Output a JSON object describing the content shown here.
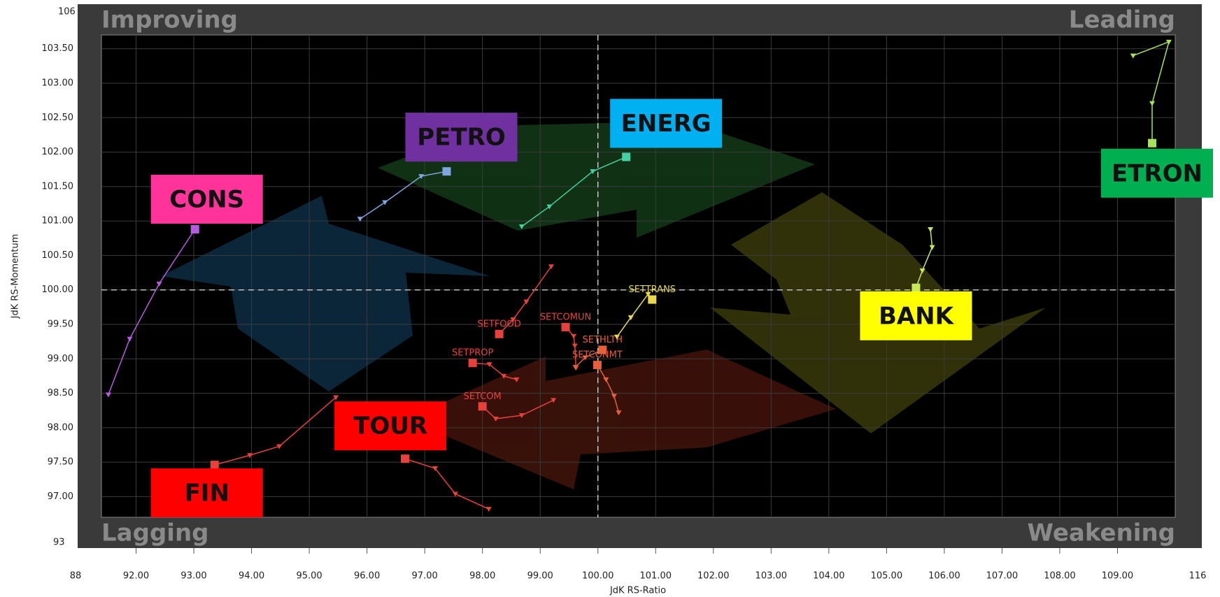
{
  "chart_data": {
    "type": "rrg",
    "x_label": "JdK RS-Ratio",
    "y_label": "JdK RS-Momentum",
    "quadrants": [
      "Improving",
      "Leading",
      "Lagging",
      "Weakening"
    ],
    "outer_labels": [
      "106",
      "93",
      "88",
      "116"
    ],
    "xlim": [
      91.4,
      110
    ],
    "ylim": [
      96.7,
      103.7
    ],
    "xticks": [
      {
        "value": 92,
        "label": "92.00"
      },
      {
        "value": 93,
        "label": "93.00"
      },
      {
        "value": 94,
        "label": "94.00"
      },
      {
        "value": 95,
        "label": "95.00"
      },
      {
        "value": 96,
        "label": "96.00"
      },
      {
        "value": 97,
        "label": "97.00"
      },
      {
        "value": 98,
        "label": "98.00"
      },
      {
        "value": 99,
        "label": "99.00"
      },
      {
        "value": 100,
        "label": "100.00"
      },
      {
        "value": 101,
        "label": "101.00"
      },
      {
        "value": 102,
        "label": "102.00"
      },
      {
        "value": 103,
        "label": "103.00"
      },
      {
        "value": 104,
        "label": "104.00"
      },
      {
        "value": 105,
        "label": "105.00"
      },
      {
        "value": 106,
        "label": "106.00"
      },
      {
        "value": 107,
        "label": "107.00"
      },
      {
        "value": 108,
        "label": "108.00"
      },
      {
        "value": 109,
        "label": "109.00"
      }
    ],
    "yticks": [
      {
        "value": 97,
        "label": "97.00"
      },
      {
        "value": 97.5,
        "label": "97.50"
      },
      {
        "value": 98,
        "label": "98.00"
      },
      {
        "value": 98.5,
        "label": "98.50"
      },
      {
        "value": 99,
        "label": "99.00"
      },
      {
        "value": 99.5,
        "label": "99.50"
      },
      {
        "value": 100,
        "label": "100.00"
      },
      {
        "value": 100.5,
        "label": "100.50"
      },
      {
        "value": 101,
        "label": "101.00"
      },
      {
        "value": 101.5,
        "label": "101.50"
      },
      {
        "value": 102,
        "label": "102.00"
      },
      {
        "value": 102.5,
        "label": "102.50"
      },
      {
        "value": 103,
        "label": "103.00"
      },
      {
        "value": 103.5,
        "label": "103.50"
      }
    ],
    "grid": true,
    "reference_x": 100,
    "reference_y": 100,
    "series": [
      {
        "name": "CONS",
        "color": "#b65ce0",
        "label_color": "#ff3399",
        "x": [
          91.52,
          91.89,
          92.4,
          93.02
        ],
        "values": [
          98.48,
          99.29,
          100.09,
          100.88
        ]
      },
      {
        "name": "PETRO",
        "color": "#7fa6e0",
        "label_color": "#7030a0",
        "x": [
          95.88,
          96.31,
          96.94,
          97.38
        ],
        "values": [
          101.03,
          101.27,
          101.65,
          101.72
        ]
      },
      {
        "name": "ENERG",
        "color": "#44d0a0",
        "label_color": "#00b0f0",
        "x": [
          98.68,
          99.16,
          99.91,
          100.49
        ],
        "values": [
          100.92,
          101.21,
          101.72,
          101.93
        ]
      },
      {
        "name": "ETRON",
        "color": "#a6e35a",
        "label_color": "#00b050",
        "x": [
          109.27,
          109.89,
          109.6,
          109.6
        ],
        "values": [
          103.4,
          103.6,
          102.71,
          102.13
        ]
      },
      {
        "name": "BANK",
        "color": "#c8e85a",
        "label_color": "#ffff00",
        "x": [
          105.76,
          105.79,
          105.62,
          105.51
        ],
        "values": [
          100.88,
          100.62,
          100.28,
          100.03
        ]
      },
      {
        "name": "TOUR",
        "color": "#e8413b",
        "label_color": "#ff0000",
        "x": [
          98.11,
          97.53,
          97.18,
          96.66
        ],
        "values": [
          96.82,
          97.04,
          97.41,
          97.55
        ]
      },
      {
        "name": "FIN",
        "color": "#e8413b",
        "label_color": "#ff0000",
        "x": [
          95.46,
          94.48,
          93.97,
          93.36
        ],
        "values": [
          98.44,
          97.73,
          97.6,
          97.46
        ]
      },
      {
        "name": "SETFOOD",
        "color": "#e8413b",
        "x": [
          99.19,
          98.76,
          98.53,
          98.29
        ],
        "values": [
          100.34,
          99.83,
          99.57,
          99.36
        ]
      },
      {
        "name": "SETPROP",
        "color": "#e8413b",
        "x": [
          98.59,
          98.37,
          98.12,
          97.83
        ],
        "values": [
          98.7,
          98.75,
          98.92,
          98.94
        ]
      },
      {
        "name": "SETCOM",
        "color": "#e8413b",
        "x": [
          99.23,
          98.68,
          98.23,
          98.0
        ],
        "values": [
          98.4,
          98.18,
          98.13,
          98.31
        ]
      },
      {
        "name": "SETCOMUN",
        "color": "#e8413b",
        "x": [
          99.62,
          99.6,
          99.58,
          99.44
        ],
        "values": [
          98.87,
          99.19,
          99.33,
          99.46
        ]
      },
      {
        "name": "SETHLTH",
        "color": "#e8603b",
        "x": [
          99.61,
          99.78,
          100.08
        ],
        "values": [
          98.88,
          99.02,
          99.13
        ]
      },
      {
        "name": "SETCONMT",
        "color": "#e8603b",
        "x": [
          100.36,
          100.28,
          100.14,
          99.99
        ],
        "values": [
          98.22,
          98.46,
          98.7,
          98.91
        ]
      },
      {
        "name": "SETTRANS",
        "color": "#e8d84a",
        "x": [
          100.33,
          100.57,
          100.87,
          100.94
        ],
        "values": [
          99.32,
          99.6,
          99.94,
          99.86
        ]
      }
    ]
  }
}
